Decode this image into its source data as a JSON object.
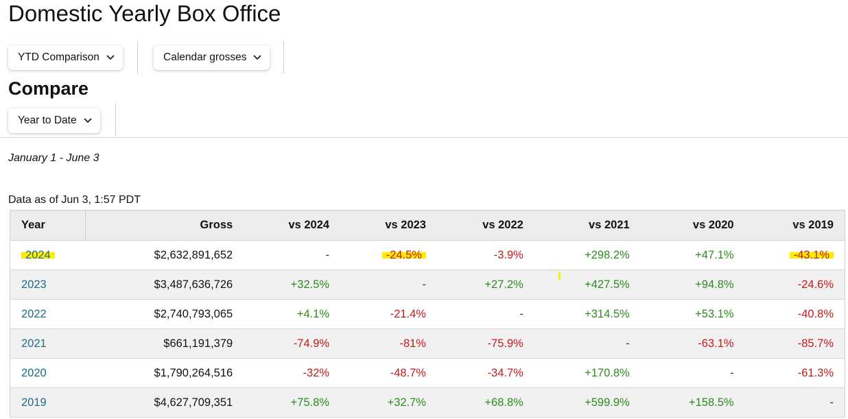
{
  "page": {
    "title": "Domestic Yearly Box Office",
    "compare_heading": "Compare"
  },
  "filters": {
    "view": "YTD Comparison",
    "gross_type": "Calendar grosses",
    "compare_range": "Year to Date"
  },
  "date_range": "January 1 - June 3",
  "data_as_of": "Data as of Jun 3, 1:57 PDT",
  "table": {
    "headers": [
      "Year",
      "Gross",
      "vs 2024",
      "vs 2023",
      "vs 2022",
      "vs 2021",
      "vs 2020",
      "vs 2019"
    ],
    "rows": [
      {
        "year": "2024",
        "gross": "$2,632,891,652",
        "vs": [
          "-",
          "-24.5%",
          "-3.9%",
          "+298.2%",
          "+47.1%",
          "-43.1%"
        ]
      },
      {
        "year": "2023",
        "gross": "$3,487,636,726",
        "vs": [
          "+32.5%",
          "-",
          "+27.2%",
          "+427.5%",
          "+94.8%",
          "-24.6%"
        ]
      },
      {
        "year": "2022",
        "gross": "$2,740,793,065",
        "vs": [
          "+4.1%",
          "-21.4%",
          "-",
          "+314.5%",
          "+53.1%",
          "-40.8%"
        ]
      },
      {
        "year": "2021",
        "gross": "$661,191,379",
        "vs": [
          "-74.9%",
          "-81%",
          "-75.9%",
          "-",
          "-63.1%",
          "-85.7%"
        ]
      },
      {
        "year": "2020",
        "gross": "$1,790,264,516",
        "vs": [
          "-32%",
          "-48.7%",
          "-34.7%",
          "+170.8%",
          "-",
          "-61.3%"
        ]
      },
      {
        "year": "2019",
        "gross": "$4,627,709,351",
        "vs": [
          "+75.8%",
          "+32.7%",
          "+68.8%",
          "+599.9%",
          "+158.5%",
          "-"
        ]
      }
    ]
  },
  "colors": {
    "positive": "#2e8b1f",
    "negative": "#c41a1a",
    "link": "#1f6e86",
    "highlight": "#ffec00"
  },
  "icons": {
    "dropdown": "chevron-down-icon"
  }
}
